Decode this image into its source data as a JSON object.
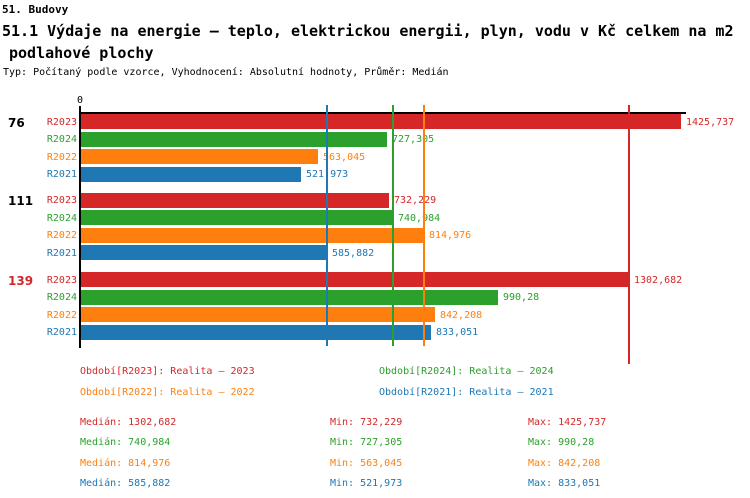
{
  "header": {
    "line1": "51. Budovy",
    "line2": "51.1 Výdaje na energie – teplo, elektrickou energii, plyn, vodu v Kč celkem na m2",
    "line3": "podlahové plochy",
    "meta": "Typ: Počítaný podle vzorce, Vyhodnocení: Absolutní hodnoty, Průměr: Medián"
  },
  "chart_data": {
    "type": "bar",
    "orientation": "horizontal",
    "x_origin_label": "0",
    "xlim": [
      0,
      1426.3
    ],
    "grid": "off",
    "series_colors": {
      "R2023": "#d62728",
      "R2024": "#2ca02c",
      "R2022": "#ff7f0e",
      "R2021": "#1f77b4"
    },
    "groups": [
      {
        "label": "76",
        "label_color": "#000000",
        "bars": [
          {
            "series": "R2023",
            "value": 1425.737,
            "label": "1425,737"
          },
          {
            "series": "R2024",
            "value": 727.305,
            "label": "727,305"
          },
          {
            "series": "R2022",
            "value": 563.045,
            "label": "563,045"
          },
          {
            "series": "R2021",
            "value": 521.973,
            "label": "521,973"
          }
        ]
      },
      {
        "label": "111",
        "label_color": "#000000",
        "bars": [
          {
            "series": "R2023",
            "value": 732.229,
            "label": "732,229"
          },
          {
            "series": "R2024",
            "value": 740.984,
            "label": "740,984"
          },
          {
            "series": "R2022",
            "value": 814.976,
            "label": "814,976"
          },
          {
            "series": "R2021",
            "value": 585.882,
            "label": "585,882"
          }
        ]
      },
      {
        "label": "139",
        "label_color": "#d62728",
        "bars": [
          {
            "series": "R2023",
            "value": 1302.682,
            "label": "1302,682"
          },
          {
            "series": "R2024",
            "value": 990.28,
            "label": "990,28"
          },
          {
            "series": "R2022",
            "value": 842.208,
            "label": "842,208"
          },
          {
            "series": "R2021",
            "value": 833.051,
            "label": "833,051"
          }
        ]
      }
    ],
    "medians": [
      {
        "series": "R2023",
        "value": 1302.682
      },
      {
        "series": "R2024",
        "value": 740.984
      },
      {
        "series": "R2022",
        "value": 814.976
      },
      {
        "series": "R2021",
        "value": 585.882
      }
    ]
  },
  "legend": {
    "items": [
      {
        "series": "R2023",
        "label": "Období[R2023]: Realita – 2023",
        "color": "#d62728"
      },
      {
        "series": "R2024",
        "label": "Období[R2024]: Realita – 2024",
        "color": "#2ca02c"
      },
      {
        "series": "R2022",
        "label": "Období[R2022]: Realita – 2022",
        "color": "#ff7f0e"
      },
      {
        "series": "R2021",
        "label": "Období[R2021]: Realita – 2021",
        "color": "#1f77b4"
      }
    ]
  },
  "stats": {
    "rows": [
      {
        "series": "R2023",
        "color": "#d62728",
        "median": "Medián: 1302,682",
        "min": "Min: 732,229",
        "max": "Max: 1425,737"
      },
      {
        "series": "R2024",
        "color": "#2ca02c",
        "median": "Medián: 740,984",
        "min": "Min: 727,305",
        "max": "Max: 990,28"
      },
      {
        "series": "R2022",
        "color": "#ff7f0e",
        "median": "Medián: 814,976",
        "min": "Min: 563,045",
        "max": "Max: 842,208"
      },
      {
        "series": "R2021",
        "color": "#1f77b4",
        "median": "Medián: 585,882",
        "min": "Min: 521,973",
        "max": "Max: 833,051"
      }
    ]
  }
}
